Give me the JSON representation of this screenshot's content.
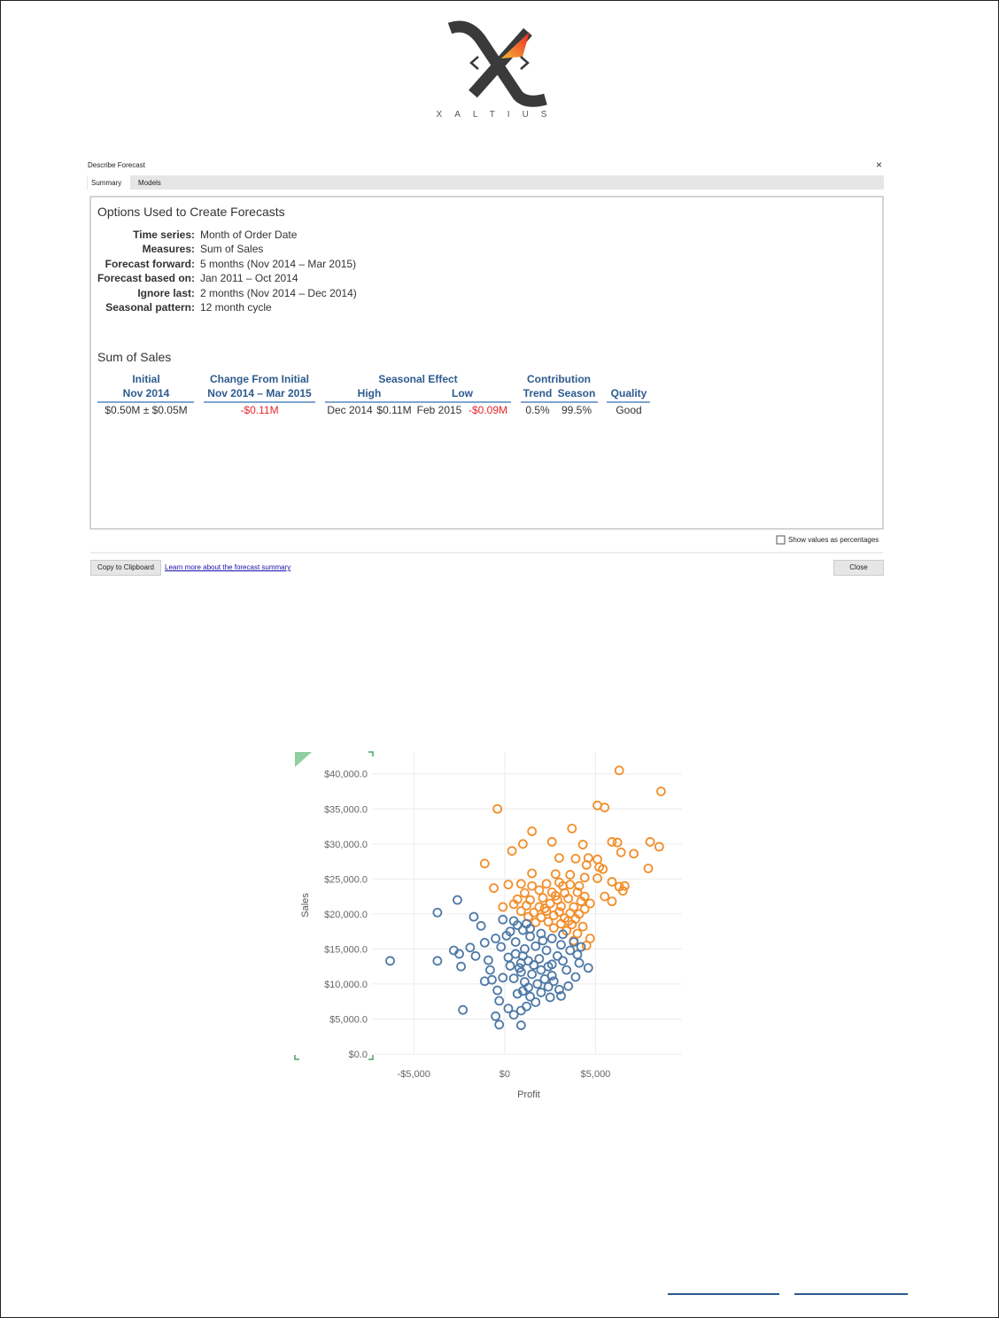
{
  "logo": {
    "wordmark": "XALTIUS"
  },
  "dialog": {
    "title": "Describe Forecast",
    "close": "×",
    "tabs": [
      "Summary",
      "Models"
    ],
    "options": {
      "heading": "Options Used to Create Forecasts",
      "rows": [
        [
          "Time series:",
          "Month of Order Date"
        ],
        [
          "Measures:",
          "Sum of Sales"
        ],
        [
          "Forecast forward:",
          "5 months (Nov 2014 – Mar 2015)"
        ],
        [
          "Forecast based on:",
          "Jan 2011 – Oct 2014"
        ],
        [
          "Ignore last:",
          "2 months (Nov 2014 – Dec 2014)"
        ],
        [
          "Seasonal pattern:",
          "12 month cycle"
        ]
      ]
    },
    "summary": {
      "heading": "Sum of Sales",
      "header_top": [
        "Initial",
        "Change From Initial",
        "Seasonal Effect",
        "Contribution"
      ],
      "header_sub": [
        "Nov 2014",
        "Nov 2014 – Mar 2015",
        "High",
        "Low",
        "Trend",
        "Season",
        "Quality"
      ],
      "row": [
        "$0.50M ± $0.05M",
        "-$0.11M",
        "Dec 2014",
        "$0.11M",
        "Feb 2015",
        "-$0.09M",
        "0.5%",
        "99.5%",
        "Good"
      ]
    },
    "checkbox": "Show values as percentages",
    "buttons": {
      "copy": "Copy to Clipboard",
      "link": "Learn more about the forecast summary",
      "close": "Close"
    }
  },
  "chart_data": {
    "type": "scatter",
    "x_label": "Profit",
    "y_label": "Sales",
    "xlim": [
      -7300,
      9750
    ],
    "ylim": [
      0,
      43000
    ],
    "xticks": [
      {
        "value": -5000,
        "label": "-$5,000"
      },
      {
        "value": 0,
        "label": "$0"
      },
      {
        "value": 5000,
        "label": "$5,000"
      }
    ],
    "yticks": [
      {
        "value": 0,
        "label": "$0.0"
      },
      {
        "value": 5000,
        "label": "$5,000.0"
      },
      {
        "value": 10000,
        "label": "$10,000.0"
      },
      {
        "value": 15000,
        "label": "$15,000.0"
      },
      {
        "value": 20000,
        "label": "$20,000.0"
      },
      {
        "value": 25000,
        "label": "$25,000.0"
      },
      {
        "value": 30000,
        "label": "$30,000.0"
      },
      {
        "value": 35000,
        "label": "$35,000.0"
      },
      {
        "value": 40000,
        "label": "$40,000.0"
      }
    ],
    "grid": true,
    "series": [
      {
        "color": "#f28e2b",
        "x": [
          6300,
          8600,
          -400,
          5100,
          5500,
          1500,
          3700,
          1000,
          2600,
          5900,
          6200,
          8000,
          8500,
          6400,
          7100,
          4300,
          400,
          3000,
          3900,
          4600,
          5100,
          -1100,
          4500,
          5400,
          5200,
          7900,
          1500,
          2800,
          3600,
          4400,
          5900,
          6300,
          6600,
          6500,
          5100,
          -600,
          200,
          900,
          1500,
          2300,
          3000,
          3600,
          4100,
          1100,
          1900,
          2600,
          3300,
          4000,
          4400,
          5500,
          5900,
          700,
          1400,
          2100,
          2900,
          3500,
          4200,
          4700,
          -100,
          500,
          1200,
          1900,
          2500,
          3100,
          3800,
          4400,
          900,
          1600,
          2300,
          3000,
          3600,
          4100,
          1300,
          2000,
          2700,
          3300,
          3900,
          1700,
          2400,
          3100,
          3700,
          4300,
          2700,
          3400,
          4000,
          4700,
          3800,
          4500,
          3500,
          2200,
          2800,
          3200
        ],
        "values": [
          40500,
          37500,
          35000,
          35500,
          35200,
          31800,
          32200,
          30000,
          30300,
          30300,
          30200,
          30300,
          29600,
          28800,
          28600,
          29900,
          29000,
          28000,
          27900,
          28000,
          27800,
          27200,
          27000,
          26400,
          26700,
          26500,
          25800,
          25700,
          25600,
          25200,
          24600,
          23900,
          24000,
          23300,
          25100,
          23700,
          24200,
          24300,
          24000,
          24300,
          24500,
          24200,
          24000,
          23000,
          23400,
          23100,
          23000,
          23100,
          22500,
          22500,
          21800,
          22100,
          22000,
          22300,
          22000,
          22200,
          21800,
          21500,
          21000,
          21400,
          21200,
          21000,
          21500,
          21100,
          21000,
          20700,
          20400,
          20200,
          20400,
          20300,
          20100,
          20000,
          19600,
          19500,
          19800,
          19400,
          19300,
          18800,
          18900,
          18600,
          18500,
          18200,
          18000,
          17600,
          17200,
          16500,
          16200,
          15500,
          19000,
          20800,
          22600,
          24000
        ]
      },
      {
        "color": "#4e79a7",
        "x": [
          -6300,
          -3700,
          -2600,
          -3700,
          -2800,
          -2500,
          -2400,
          -2300,
          -1700,
          -1300,
          -1900,
          -1600,
          -1100,
          -900,
          -800,
          -700,
          -1100,
          -400,
          -300,
          -500,
          -300,
          900,
          500,
          200,
          1200,
          1400,
          1000,
          -100,
          300,
          600,
          100,
          -100,
          300,
          700,
          1000,
          1400,
          2000,
          2600,
          3100,
          3600,
          4000,
          4100,
          3200,
          2600,
          2000,
          1500,
          900,
          500,
          1100,
          1800,
          2400,
          3000,
          3100,
          3500,
          2600,
          2900,
          2300,
          1700,
          1100,
          600,
          1300,
          1900,
          2400,
          1600,
          900,
          2100,
          1400,
          800,
          200,
          -200,
          3200,
          3800,
          2700,
          1300,
          700,
          2000,
          1700,
          900,
          2500,
          3400,
          4600,
          3900,
          2200,
          1200,
          500,
          -500,
          1000,
          4200
        ],
        "values": [
          13300,
          20200,
          22000,
          13300,
          14800,
          14300,
          12500,
          6300,
          19600,
          18300,
          15200,
          14000,
          15900,
          13400,
          12000,
          10600,
          10400,
          9100,
          7600,
          5400,
          4200,
          4100,
          5600,
          6500,
          6800,
          8200,
          9000,
          10900,
          12600,
          14300,
          16900,
          19200,
          17500,
          18400,
          17700,
          16800,
          17200,
          16500,
          15600,
          14800,
          14200,
          13000,
          13300,
          12800,
          12000,
          11400,
          11700,
          10800,
          10300,
          10000,
          9600,
          9200,
          8300,
          9700,
          11200,
          14000,
          14800,
          15400,
          15000,
          16000,
          13300,
          13600,
          12500,
          12700,
          13000,
          16200,
          17900,
          12300,
          13800,
          15300,
          17100,
          16000,
          10400,
          9500,
          8600,
          8800,
          7400,
          6200,
          8100,
          12000,
          12300,
          11000,
          10700,
          18600,
          19000,
          16500,
          14000,
          15300
        ]
      }
    ]
  }
}
